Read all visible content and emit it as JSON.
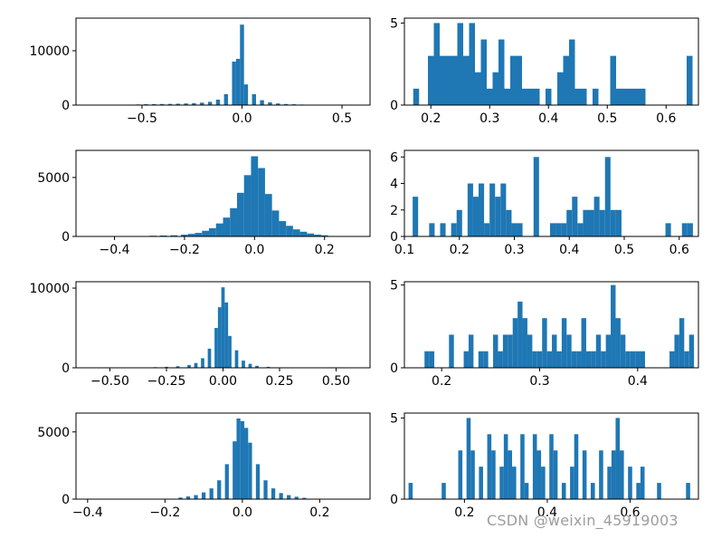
{
  "colors": {
    "bar": "#1f77b4",
    "axis": "#000000",
    "background": "#ffffff"
  },
  "watermark": "CSDN @weixin_45919003",
  "chart_data": [
    {
      "type": "bar",
      "row": 1,
      "col": 1,
      "xlim": [
        -0.83,
        0.64
      ],
      "ylim": [
        0,
        16000
      ],
      "xticks": [
        -0.5,
        0.0,
        0.5
      ],
      "xtick_labels": [
        "−0.5",
        "0.0",
        "0.5"
      ],
      "yticks": [
        0,
        10000
      ],
      "ytick_labels": [
        "0",
        "10000"
      ],
      "x": [
        -0.52,
        -0.48,
        -0.44,
        -0.4,
        -0.36,
        -0.32,
        -0.28,
        -0.24,
        -0.2,
        -0.16,
        -0.12,
        -0.08,
        -0.04,
        -0.02,
        0.0,
        0.02,
        0.06,
        0.1,
        0.14,
        0.18,
        0.22,
        0.26,
        0.3
      ],
      "values": [
        120,
        160,
        180,
        200,
        220,
        250,
        300,
        350,
        450,
        600,
        1000,
        2000,
        8000,
        8500,
        14800,
        3800,
        2000,
        900,
        500,
        300,
        200,
        150,
        100
      ]
    },
    {
      "type": "bar",
      "row": 1,
      "col": 2,
      "xlim": [
        0.155,
        0.655
      ],
      "ylim": [
        0,
        5.3
      ],
      "xticks": [
        0.2,
        0.3,
        0.4,
        0.5,
        0.6
      ],
      "xtick_labels": [
        "0.2",
        "0.3",
        "0.4",
        "0.5",
        "0.6"
      ],
      "yticks": [
        0,
        5
      ],
      "ytick_labels": [
        "0",
        "5"
      ],
      "x": [
        0.175,
        0.2,
        0.21,
        0.22,
        0.23,
        0.24,
        0.25,
        0.26,
        0.27,
        0.28,
        0.29,
        0.3,
        0.31,
        0.32,
        0.33,
        0.34,
        0.35,
        0.36,
        0.37,
        0.38,
        0.4,
        0.42,
        0.43,
        0.44,
        0.45,
        0.46,
        0.48,
        0.5,
        0.51,
        0.52,
        0.53,
        0.54,
        0.55,
        0.56,
        0.57,
        0.6,
        0.61,
        0.62,
        0.63,
        0.64
      ],
      "values": [
        1,
        3,
        5,
        3,
        3,
        3,
        5,
        3,
        5,
        2,
        4,
        1,
        2,
        4,
        1,
        3,
        3,
        1,
        1,
        1,
        1,
        2,
        3,
        4,
        1,
        1,
        1,
        0,
        3,
        1,
        1,
        1,
        1,
        1,
        0,
        0,
        0,
        0,
        0,
        3
      ]
    },
    {
      "type": "bar",
      "row": 2,
      "col": 1,
      "xlim": [
        -0.51,
        0.33
      ],
      "ylim": [
        0,
        7300
      ],
      "xticks": [
        -0.4,
        -0.2,
        0.0,
        0.2
      ],
      "xtick_labels": [
        "−0.4",
        "−0.2",
        "0.0",
        "0.2"
      ],
      "yticks": [
        0,
        5000
      ],
      "ytick_labels": [
        "0",
        "5000"
      ],
      "x": [
        -0.29,
        -0.26,
        -0.23,
        -0.2,
        -0.18,
        -0.16,
        -0.14,
        -0.12,
        -0.1,
        -0.08,
        -0.06,
        -0.04,
        -0.02,
        0.0,
        0.02,
        0.04,
        0.06,
        0.08,
        0.1,
        0.12,
        0.14,
        0.16,
        0.18,
        0.2
      ],
      "values": [
        60,
        80,
        100,
        150,
        220,
        300,
        480,
        700,
        1100,
        1600,
        2400,
        3700,
        5200,
        6800,
        5800,
        3600,
        2200,
        1300,
        900,
        600,
        400,
        250,
        150,
        100
      ]
    },
    {
      "type": "bar",
      "row": 2,
      "col": 2,
      "xlim": [
        0.1,
        0.635
      ],
      "ylim": [
        0,
        6.5
      ],
      "xticks": [
        0.1,
        0.2,
        0.3,
        0.4,
        0.5,
        0.6
      ],
      "xtick_labels": [
        "0.1",
        "0.2",
        "0.3",
        "0.4",
        "0.5",
        "0.6"
      ],
      "yticks": [
        0,
        2,
        4,
        6
      ],
      "ytick_labels": [
        "0",
        "2",
        "4",
        "6"
      ],
      "x": [
        0.12,
        0.15,
        0.17,
        0.19,
        0.2,
        0.22,
        0.23,
        0.24,
        0.25,
        0.26,
        0.27,
        0.28,
        0.29,
        0.3,
        0.31,
        0.34,
        0.37,
        0.38,
        0.39,
        0.4,
        0.41,
        0.42,
        0.43,
        0.44,
        0.45,
        0.46,
        0.47,
        0.48,
        0.49,
        0.58,
        0.61,
        0.62
      ],
      "values": [
        3,
        1,
        1,
        1,
        2,
        4,
        3,
        4,
        1,
        4,
        3,
        4,
        2,
        1,
        1,
        6,
        1,
        1,
        1,
        2,
        3,
        1,
        2,
        2,
        3,
        2,
        6,
        2,
        2,
        1,
        1,
        1
      ]
    },
    {
      "type": "bar",
      "row": 3,
      "col": 1,
      "xlim": [
        -0.65,
        0.65
      ],
      "ylim": [
        0,
        10800
      ],
      "xticks": [
        -0.5,
        -0.25,
        0.0,
        0.25,
        0.5
      ],
      "xtick_labels": [
        "−0.50",
        "−0.25",
        "0.00",
        "0.25",
        "0.50"
      ],
      "yticks": [
        0,
        10000
      ],
      "ytick_labels": [
        "0",
        "10000"
      ],
      "x": [
        -0.3,
        -0.25,
        -0.2,
        -0.15,
        -0.12,
        -0.09,
        -0.06,
        -0.03,
        -0.015,
        0.0,
        0.015,
        0.03,
        0.06,
        0.09,
        0.12,
        0.15,
        0.2
      ],
      "values": [
        80,
        120,
        200,
        350,
        600,
        1200,
        2400,
        5000,
        7600,
        10100,
        8200,
        4000,
        2200,
        900,
        500,
        250,
        120
      ]
    },
    {
      "type": "bar",
      "row": 3,
      "col": 2,
      "xlim": [
        0.162,
        0.462
      ],
      "ylim": [
        0,
        5.2
      ],
      "xticks": [
        0.2,
        0.3,
        0.4
      ],
      "xtick_labels": [
        "0.2",
        "0.3",
        "0.4"
      ],
      "yticks": [
        0,
        5
      ],
      "ytick_labels": [
        "0",
        "5"
      ],
      "x": [
        0.185,
        0.19,
        0.2,
        0.21,
        0.215,
        0.225,
        0.23,
        0.24,
        0.245,
        0.255,
        0.26,
        0.265,
        0.27,
        0.275,
        0.28,
        0.285,
        0.29,
        0.295,
        0.3,
        0.305,
        0.31,
        0.315,
        0.32,
        0.325,
        0.33,
        0.335,
        0.34,
        0.345,
        0.35,
        0.355,
        0.36,
        0.365,
        0.37,
        0.375,
        0.38,
        0.385,
        0.39,
        0.395,
        0.4,
        0.405,
        0.43,
        0.435,
        0.44,
        0.445,
        0.45,
        0.455
      ],
      "values": [
        1,
        1,
        0,
        2,
        0,
        1,
        2,
        1,
        1,
        2,
        1,
        2,
        2,
        3,
        4,
        3,
        2,
        1,
        1,
        3,
        1,
        2,
        1,
        3,
        2,
        1,
        1,
        3,
        1,
        1,
        2,
        1,
        2,
        5,
        3,
        2,
        1,
        1,
        1,
        1,
        0,
        1,
        2,
        3,
        1,
        2
      ]
    },
    {
      "type": "bar",
      "row": 4,
      "col": 1,
      "xlim": [
        -0.43,
        0.33
      ],
      "ylim": [
        0,
        6400
      ],
      "xticks": [
        -0.4,
        -0.2,
        0.0,
        0.2
      ],
      "xtick_labels": [
        "−0.4",
        "−0.2",
        "0.0",
        "0.2"
      ],
      "yticks": [
        0,
        5000
      ],
      "ytick_labels": [
        "0",
        "5000"
      ],
      "x": [
        -0.16,
        -0.14,
        -0.12,
        -0.1,
        -0.08,
        -0.06,
        -0.04,
        -0.02,
        -0.01,
        0.0,
        0.01,
        0.02,
        0.04,
        0.06,
        0.08,
        0.1,
        0.12,
        0.14,
        0.16
      ],
      "values": [
        120,
        200,
        300,
        500,
        800,
        1400,
        2600,
        4300,
        6000,
        5800,
        5300,
        4200,
        2600,
        1400,
        800,
        450,
        300,
        180,
        100
      ]
    },
    {
      "type": "bar",
      "row": 4,
      "col": 2,
      "xlim": [
        0.055,
        0.765
      ],
      "ylim": [
        0,
        5.3
      ],
      "xticks": [
        0.2,
        0.4,
        0.6
      ],
      "xtick_labels": [
        "0.2",
        "0.4",
        "0.6"
      ],
      "yticks": [
        0,
        5
      ],
      "ytick_labels": [
        "0",
        "5"
      ],
      "x": [
        0.07,
        0.15,
        0.19,
        0.21,
        0.22,
        0.24,
        0.26,
        0.27,
        0.29,
        0.3,
        0.31,
        0.32,
        0.34,
        0.35,
        0.37,
        0.38,
        0.39,
        0.41,
        0.42,
        0.44,
        0.46,
        0.47,
        0.49,
        0.51,
        0.53,
        0.55,
        0.56,
        0.57,
        0.58,
        0.6,
        0.62,
        0.63,
        0.67,
        0.74
      ],
      "values": [
        1,
        1,
        3,
        5,
        3,
        2,
        4,
        3,
        2,
        4,
        3,
        2,
        4,
        1,
        4,
        3,
        2,
        4,
        3,
        1,
        2,
        4,
        3,
        1,
        3,
        2,
        3,
        5,
        3,
        2,
        1,
        2,
        1,
        1
      ]
    }
  ]
}
